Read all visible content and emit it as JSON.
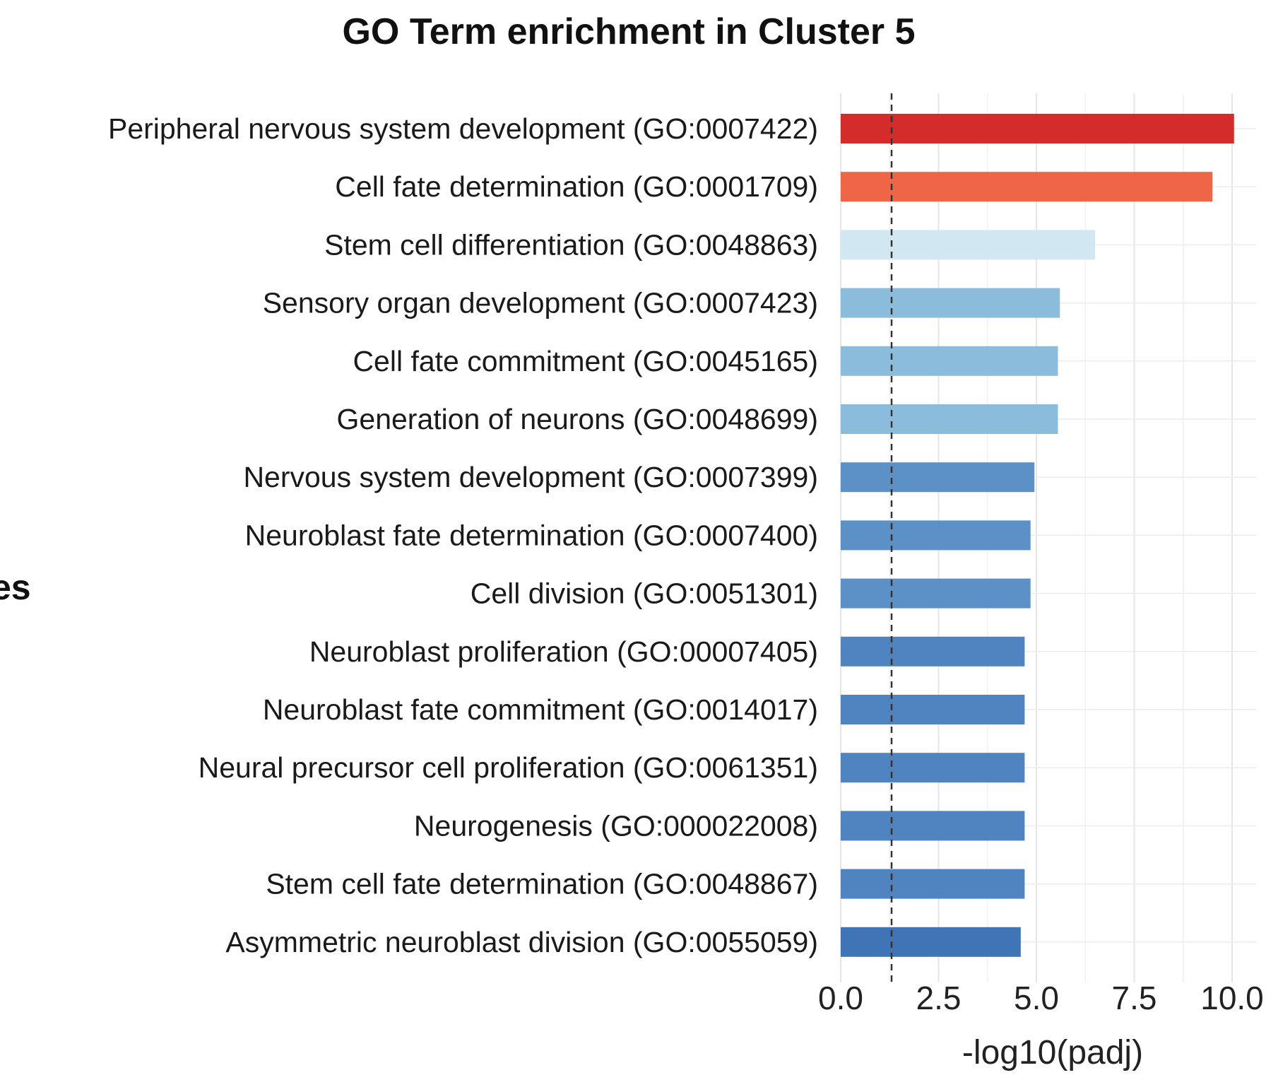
{
  "chart_data": {
    "type": "bar",
    "orientation": "horizontal",
    "title": "GO Term enrichment in Cluster 5",
    "xlabel": "-log10(padj)",
    "ylabel": "",
    "xlim": [
      0,
      10.5
    ],
    "xticks": [
      "0.0",
      "2.5",
      "5.0",
      "7.5",
      "10.0"
    ],
    "xtick_values": [
      0,
      2.5,
      5,
      7.5,
      10
    ],
    "grid": true,
    "threshold_line": {
      "value": 1.3,
      "style": "dashed"
    },
    "categories": [
      "Peripheral nervous system development (GO:0007422)",
      "Cell fate determination (GO:0001709)",
      "Stem cell differentiation (GO:0048863)",
      "Sensory organ development (GO:0007423)",
      "Cell fate commitment (GO:0045165)",
      "Generation of neurons (GO:0048699)",
      "Nervous system development (GO:0007399)",
      "Neuroblast fate determination (GO:0007400)",
      "Cell division (GO:0051301)",
      "Neuroblast proliferation (GO:00007405)",
      "Neuroblast fate commitment (GO:0014017)",
      "Neural precursor cell proliferation (GO:0061351)",
      "Neurogenesis (GO:000022008)",
      "Stem cell fate determination (GO:0048867)",
      "Asymmetric neuroblast division (GO:0055059)"
    ],
    "values": [
      10.05,
      9.5,
      6.5,
      5.6,
      5.55,
      5.55,
      4.95,
      4.85,
      4.85,
      4.7,
      4.7,
      4.7,
      4.7,
      4.7,
      4.6
    ],
    "colors": [
      "#d42c2a",
      "#ee6645",
      "#d1e8f2",
      "#8cbcdc",
      "#8cbcdc",
      "#8cbcdc",
      "#5b91c6",
      "#5b91c6",
      "#5b91c6",
      "#4f84c0",
      "#4f84c0",
      "#4f84c0",
      "#4f84c0",
      "#4f84c0",
      "#3f74b6"
    ]
  },
  "edge_text": "es"
}
